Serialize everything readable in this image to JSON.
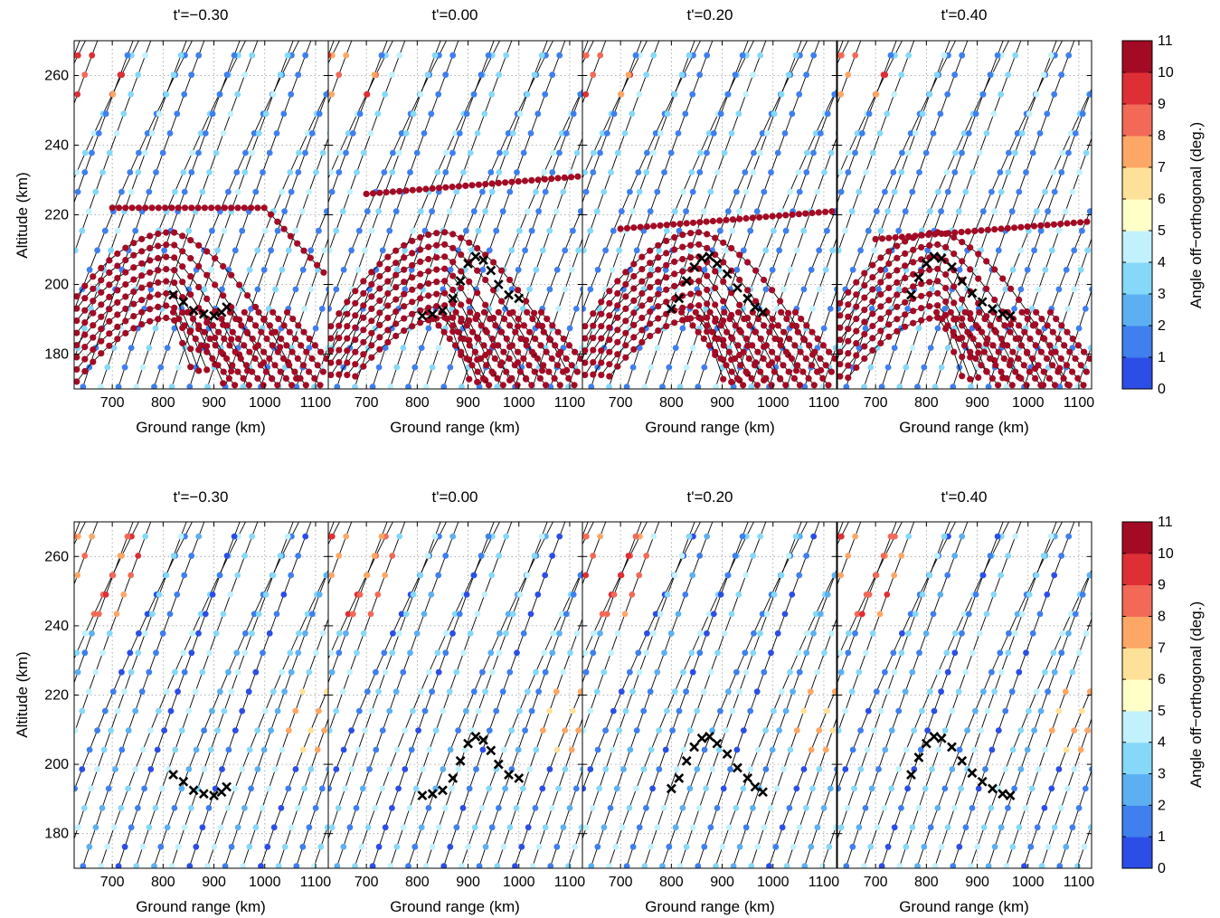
{
  "figure": {
    "rows": [
      {
        "panels": [
          {
            "title": "t'=−0.30"
          },
          {
            "title": "t'=0.00"
          },
          {
            "title": "t'=0.20"
          },
          {
            "title": "t'=0.40"
          }
        ],
        "ylabel": "Altitude (km)",
        "xlabel": "Ground range (km)",
        "colorbar_label": "Angle off−orthogonal (deg.)"
      },
      {
        "panels": [
          {
            "title": "t'=−0.30"
          },
          {
            "title": "t'=0.00"
          },
          {
            "title": "t'=0.20"
          },
          {
            "title": "t'=0.40"
          }
        ],
        "ylabel": "Altitude (km)",
        "xlabel": "Ground range (km)",
        "colorbar_label": "Angle off−orthogonal (deg.)"
      }
    ]
  },
  "chart_data": {
    "type": "scatter",
    "xlim": [
      625,
      1125
    ],
    "ylim": [
      170,
      270
    ],
    "xticks": [
      "700",
      "800",
      "900",
      "1000",
      "1100"
    ],
    "yticks": [
      "180",
      "200",
      "220",
      "240",
      "260"
    ],
    "grid": true,
    "colorbar": {
      "ticks": [
        "0",
        "1",
        "2",
        "3",
        "4",
        "5",
        "6",
        "7",
        "8",
        "9",
        "10",
        "11"
      ],
      "range": [
        0,
        11
      ],
      "colors": [
        "#2c4ee6",
        "#3f7fee",
        "#5cb0f2",
        "#86d8f8",
        "#c2f1fb",
        "#ffffc8",
        "#fee199",
        "#fda766",
        "#f26a57",
        "#dd2f35",
        "#a30b25"
      ]
    },
    "cross_markers": {
      "t=-0.30": [
        [
          820,
          197
        ],
        [
          840,
          195
        ],
        [
          860,
          192.5
        ],
        [
          880,
          191.5
        ],
        [
          900,
          191
        ],
        [
          915,
          192
        ],
        [
          925,
          193.5
        ]
      ],
      "t=0.00": [
        [
          810,
          191
        ],
        [
          830,
          191.5
        ],
        [
          850,
          192.5
        ],
        [
          870,
          196
        ],
        [
          885,
          201
        ],
        [
          900,
          206
        ],
        [
          915,
          208
        ],
        [
          930,
          207
        ],
        [
          945,
          204
        ],
        [
          960,
          200
        ],
        [
          980,
          197
        ],
        [
          1000,
          196
        ]
      ],
      "t=0.20": [
        [
          800,
          193
        ],
        [
          815,
          196
        ],
        [
          830,
          201
        ],
        [
          845,
          205
        ],
        [
          860,
          207.5
        ],
        [
          875,
          208
        ],
        [
          890,
          206
        ],
        [
          910,
          203
        ],
        [
          930,
          199
        ],
        [
          950,
          196
        ],
        [
          965,
          193.5
        ],
        [
          980,
          192
        ]
      ],
      "t=0.40": [
        [
          770,
          197
        ],
        [
          785,
          202
        ],
        [
          800,
          206
        ],
        [
          815,
          208
        ],
        [
          830,
          207.5
        ],
        [
          850,
          205
        ],
        [
          870,
          201
        ],
        [
          890,
          197.5
        ],
        [
          910,
          195
        ],
        [
          930,
          193
        ],
        [
          950,
          191.5
        ],
        [
          965,
          191
        ]
      ]
    }
  }
}
